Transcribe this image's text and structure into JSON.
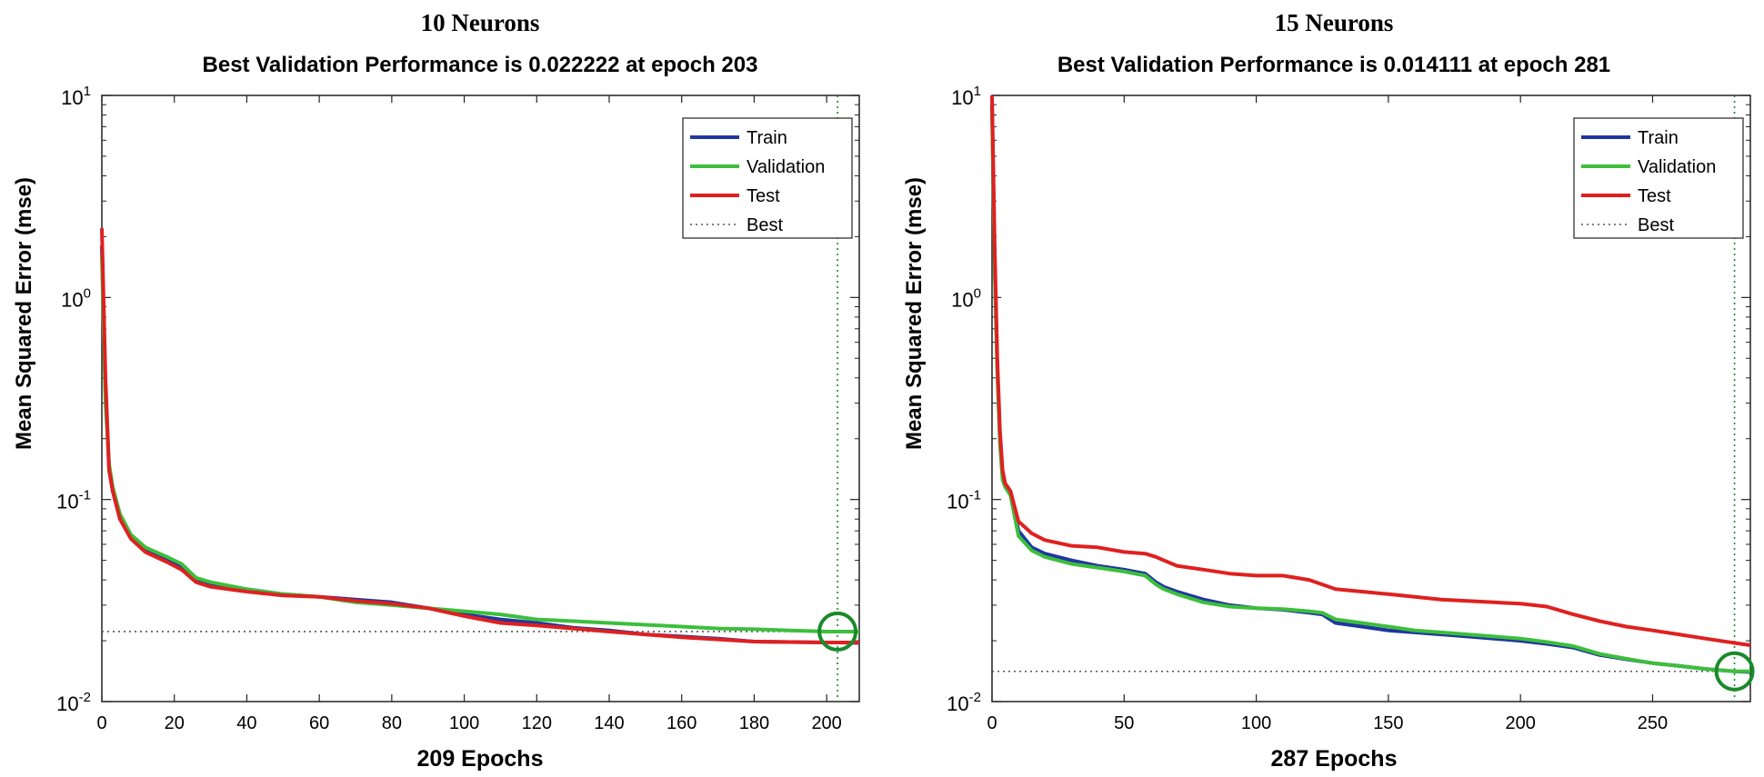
{
  "chart_data": [
    {
      "type": "line",
      "heading": "10 Neurons",
      "title": "Best Validation Performance is 0.022222 at epoch 203",
      "xlabel": "209 Epochs",
      "ylabel": "Mean Squared Error  (mse)",
      "yscale": "log",
      "xlim": [
        0,
        209
      ],
      "ylim": [
        0.01,
        10
      ],
      "xticks": [
        0,
        20,
        40,
        60,
        80,
        100,
        120,
        140,
        160,
        180,
        200
      ],
      "yticks": [
        {
          "value": 0.01,
          "base": "10",
          "exp": "-2"
        },
        {
          "value": 0.1,
          "base": "10",
          "exp": "-1"
        },
        {
          "value": 1,
          "base": "10",
          "exp": "0"
        },
        {
          "value": 10,
          "base": "10",
          "exp": "1"
        }
      ],
      "best": {
        "epoch": 203,
        "value": 0.022222
      },
      "legend": {
        "position": "top-right",
        "entries": [
          "Train",
          "Validation",
          "Test",
          "Best"
        ]
      },
      "colors": {
        "Train": "#2036a0",
        "Validation": "#3cbf3c",
        "Test": "#e02020",
        "Best": "#1a8a2a"
      },
      "series": [
        {
          "name": "Train",
          "x": [
            0,
            1,
            2,
            3,
            5,
            8,
            12,
            18,
            22,
            26,
            30,
            40,
            50,
            60,
            70,
            80,
            90,
            100,
            110,
            120,
            130,
            140,
            150,
            160,
            170,
            180,
            190,
            200,
            203,
            209
          ],
          "y": [
            1.8,
            0.35,
            0.14,
            0.11,
            0.08,
            0.065,
            0.056,
            0.05,
            0.046,
            0.04,
            0.038,
            0.036,
            0.034,
            0.033,
            0.032,
            0.031,
            0.029,
            0.027,
            0.0255,
            0.0245,
            0.0232,
            0.0225,
            0.0215,
            0.021,
            0.0205,
            0.0198,
            0.0197,
            0.0196,
            0.0196,
            0.0195
          ]
        },
        {
          "name": "Validation",
          "x": [
            0,
            1,
            2,
            3,
            5,
            8,
            12,
            18,
            22,
            26,
            30,
            40,
            50,
            60,
            70,
            80,
            90,
            100,
            110,
            120,
            130,
            140,
            150,
            160,
            170,
            180,
            190,
            200,
            203,
            209
          ],
          "y": [
            1.6,
            0.3,
            0.15,
            0.115,
            0.085,
            0.067,
            0.058,
            0.052,
            0.048,
            0.041,
            0.039,
            0.036,
            0.034,
            0.033,
            0.031,
            0.03,
            0.029,
            0.028,
            0.027,
            0.0255,
            0.025,
            0.0245,
            0.024,
            0.0235,
            0.023,
            0.0228,
            0.0225,
            0.0222,
            0.0222,
            0.0222
          ]
        },
        {
          "name": "Test",
          "x": [
            0,
            1,
            2,
            3,
            5,
            8,
            12,
            18,
            22,
            26,
            30,
            40,
            50,
            60,
            70,
            80,
            90,
            100,
            110,
            120,
            130,
            140,
            150,
            160,
            170,
            180,
            190,
            200,
            203,
            209
          ],
          "y": [
            2.2,
            0.4,
            0.14,
            0.11,
            0.08,
            0.064,
            0.055,
            0.049,
            0.045,
            0.039,
            0.037,
            0.035,
            0.0335,
            0.033,
            0.0315,
            0.0305,
            0.029,
            0.0265,
            0.0245,
            0.0238,
            0.023,
            0.0222,
            0.0215,
            0.0208,
            0.0203,
            0.0198,
            0.0197,
            0.0196,
            0.0196,
            0.0196
          ]
        }
      ]
    },
    {
      "type": "line",
      "heading": "15 Neurons",
      "title": "Best Validation Performance is 0.014111 at epoch 281",
      "xlabel": "287 Epochs",
      "ylabel": "Mean Squared Error  (mse)",
      "yscale": "log",
      "xlim": [
        0,
        287
      ],
      "ylim": [
        0.01,
        10
      ],
      "xticks": [
        0,
        50,
        100,
        150,
        200,
        250
      ],
      "yticks": [
        {
          "value": 0.01,
          "base": "10",
          "exp": "-2"
        },
        {
          "value": 0.1,
          "base": "10",
          "exp": "-1"
        },
        {
          "value": 1,
          "base": "10",
          "exp": "0"
        },
        {
          "value": 10,
          "base": "10",
          "exp": "1"
        }
      ],
      "best": {
        "epoch": 281,
        "value": 0.014111
      },
      "legend": {
        "position": "top-right",
        "entries": [
          "Train",
          "Validation",
          "Test",
          "Best"
        ]
      },
      "colors": {
        "Train": "#2036a0",
        "Validation": "#3cbf3c",
        "Test": "#e02020",
        "Best": "#1a8a2a"
      },
      "series": [
        {
          "name": "Train",
          "x": [
            0,
            1,
            2,
            3,
            4,
            5,
            7,
            10,
            15,
            20,
            30,
            40,
            50,
            58,
            62,
            65,
            70,
            80,
            90,
            100,
            110,
            120,
            125,
            130,
            140,
            150,
            160,
            170,
            180,
            190,
            200,
            210,
            220,
            230,
            240,
            250,
            260,
            270,
            281,
            287
          ],
          "y": [
            9,
            1.5,
            0.45,
            0.2,
            0.13,
            0.12,
            0.11,
            0.07,
            0.058,
            0.054,
            0.05,
            0.047,
            0.045,
            0.043,
            0.039,
            0.037,
            0.035,
            0.032,
            0.03,
            0.029,
            0.0285,
            0.0275,
            0.027,
            0.0245,
            0.0235,
            0.0225,
            0.022,
            0.0215,
            0.021,
            0.0205,
            0.02,
            0.0193,
            0.0185,
            0.017,
            0.0162,
            0.0155,
            0.015,
            0.0145,
            0.0141,
            0.014
          ]
        },
        {
          "name": "Validation",
          "x": [
            0,
            1,
            2,
            3,
            4,
            5,
            7,
            10,
            15,
            20,
            30,
            40,
            50,
            58,
            62,
            65,
            70,
            80,
            90,
            100,
            110,
            120,
            125,
            130,
            140,
            150,
            160,
            170,
            180,
            190,
            200,
            210,
            220,
            230,
            240,
            250,
            260,
            270,
            281,
            287
          ],
          "y": [
            8.5,
            1.4,
            0.42,
            0.19,
            0.125,
            0.115,
            0.105,
            0.066,
            0.056,
            0.052,
            0.048,
            0.046,
            0.044,
            0.042,
            0.038,
            0.036,
            0.034,
            0.031,
            0.0295,
            0.029,
            0.0287,
            0.028,
            0.0275,
            0.0255,
            0.0245,
            0.0235,
            0.0225,
            0.022,
            0.0215,
            0.021,
            0.0205,
            0.0197,
            0.0188,
            0.0172,
            0.0163,
            0.0155,
            0.015,
            0.0145,
            0.0141,
            0.0141
          ]
        },
        {
          "name": "Test",
          "x": [
            0,
            1,
            2,
            3,
            4,
            5,
            7,
            10,
            15,
            20,
            30,
            40,
            50,
            58,
            62,
            65,
            70,
            80,
            90,
            100,
            110,
            120,
            125,
            130,
            140,
            150,
            160,
            170,
            180,
            190,
            200,
            210,
            220,
            230,
            240,
            250,
            260,
            270,
            281,
            287
          ],
          "y": [
            10,
            1.8,
            0.5,
            0.22,
            0.14,
            0.12,
            0.11,
            0.078,
            0.068,
            0.063,
            0.059,
            0.058,
            0.055,
            0.054,
            0.052,
            0.05,
            0.047,
            0.045,
            0.043,
            0.042,
            0.042,
            0.04,
            0.038,
            0.036,
            0.035,
            0.034,
            0.033,
            0.032,
            0.0315,
            0.031,
            0.0305,
            0.0295,
            0.027,
            0.025,
            0.0235,
            0.0225,
            0.0215,
            0.0205,
            0.0195,
            0.019
          ]
        }
      ]
    }
  ]
}
